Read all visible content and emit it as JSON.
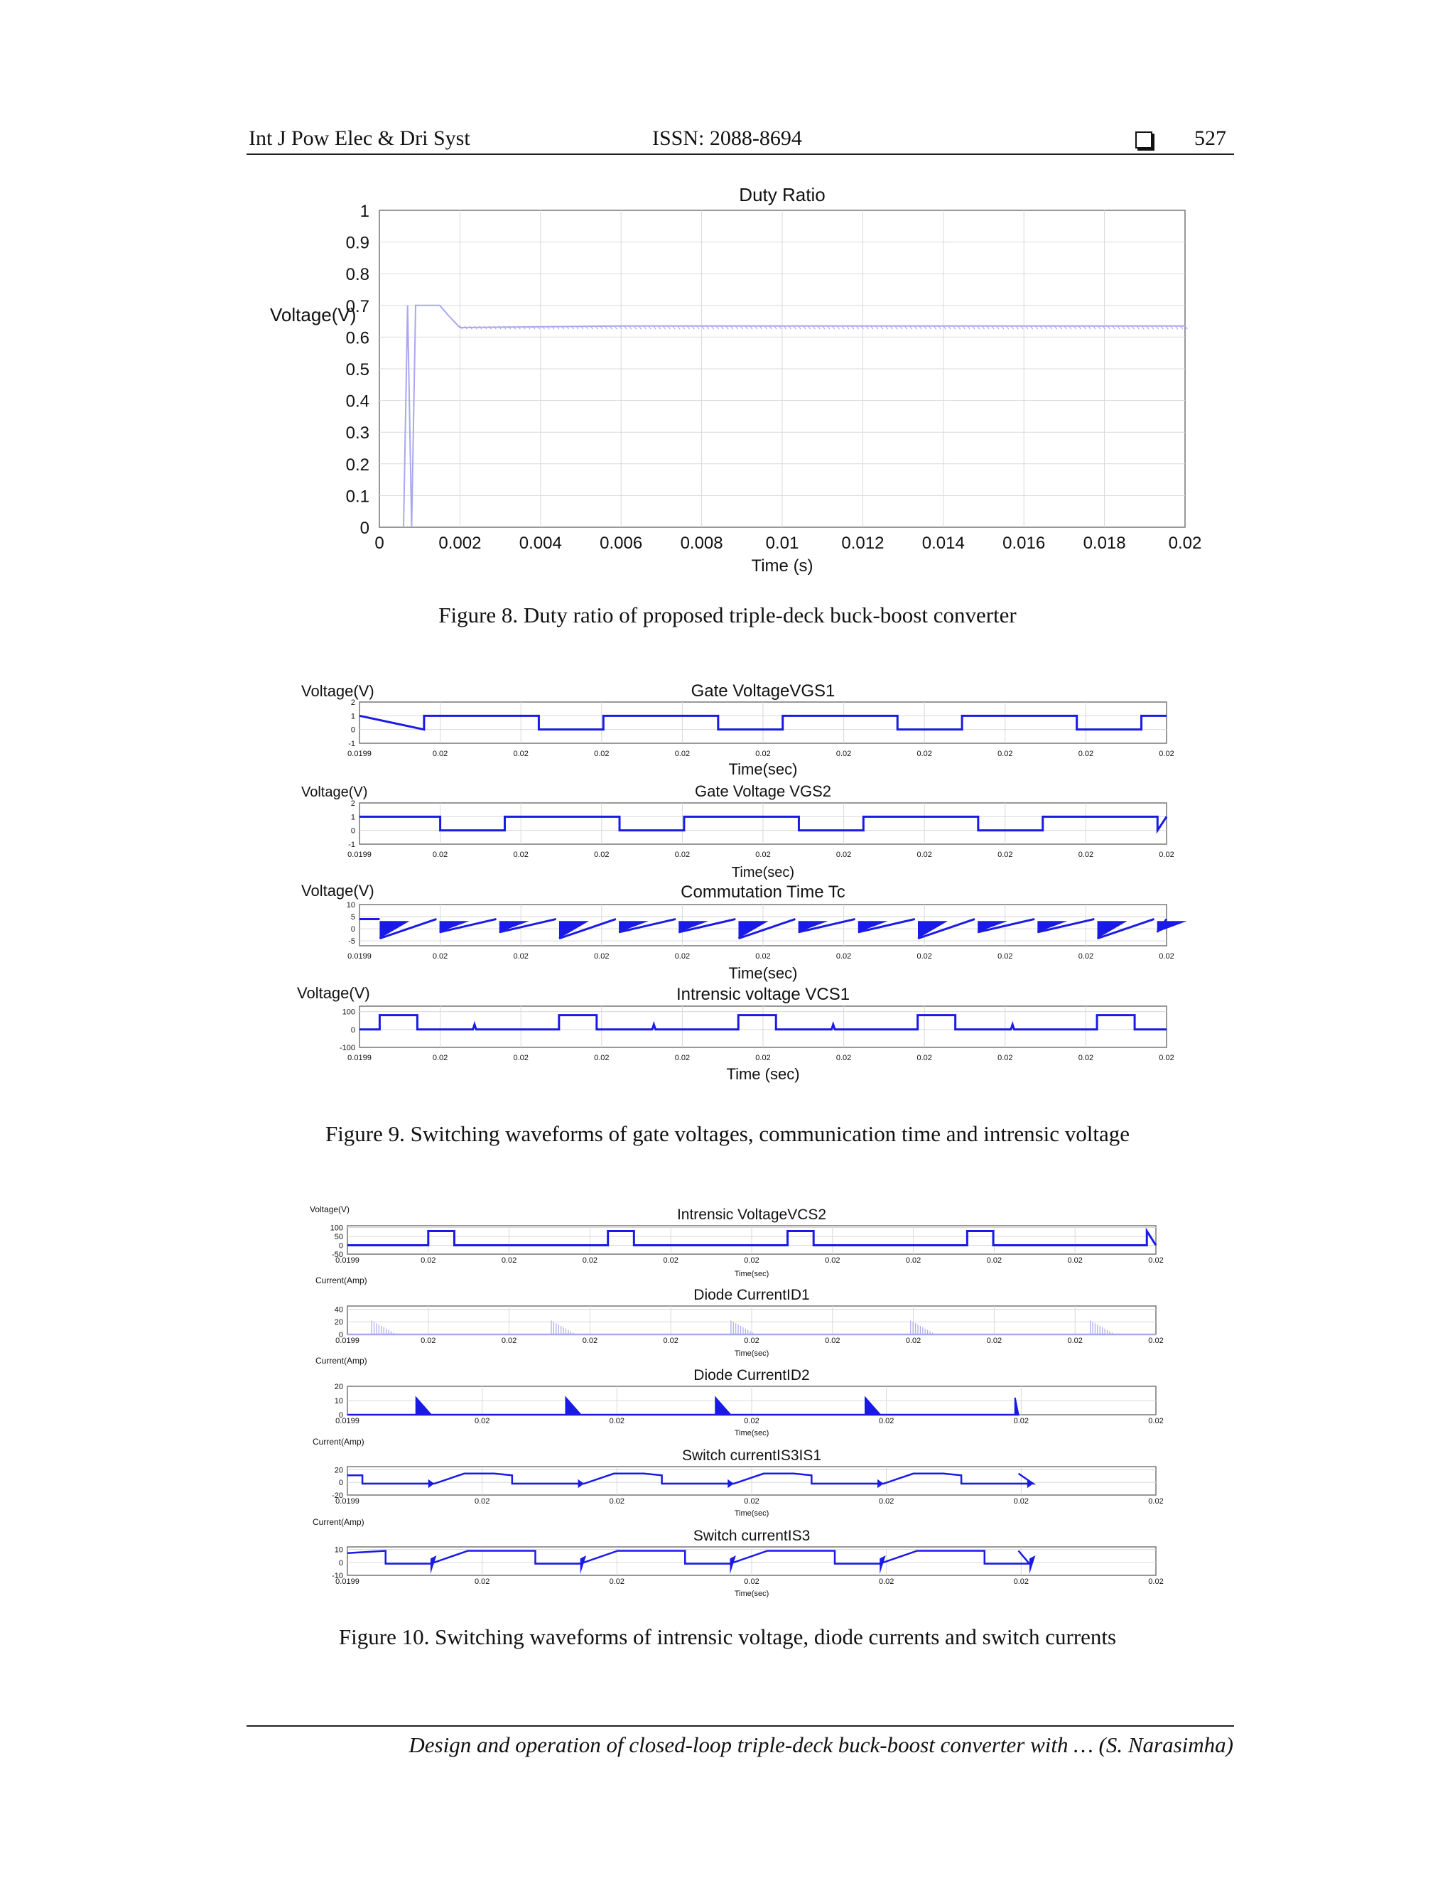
{
  "header": {
    "journal": "Int J Pow Elec & Dri Syst",
    "issn": "ISSN: 2088-8694",
    "page_number": "527",
    "icon": "checkbox-square-icon"
  },
  "footer": {
    "text": "Design and operation of closed-loop triple-deck buck-boost converter with … (S. Narasimha)"
  },
  "figures": {
    "fig8": {
      "caption": "Figure 8. Duty ratio of proposed triple-deck buck-boost converter"
    },
    "fig9": {
      "caption": "Figure 9. Switching waveforms of gate voltages, communication time and intrensic voltage"
    },
    "fig10": {
      "caption": "Figure 10. Switching waveforms of intrensic voltage, diode currents and switch currents"
    }
  },
  "colors": {
    "trace": "#1a1ae6",
    "trace_light": "#a8a8f0",
    "grid": "#d9d9d9"
  },
  "chart_data": [
    {
      "id": "fig8",
      "type": "line",
      "title": "Duty Ratio",
      "xlabel": "Time (s)",
      "ylabel": "Voltage(V)",
      "xlim": [
        0,
        0.02
      ],
      "ylim": [
        0,
        1
      ],
      "xticks": [
        "0",
        "0.002",
        "0.004",
        "0.006",
        "0.008",
        "0.01",
        "0.012",
        "0.014",
        "0.016",
        "0.018",
        "0.02"
      ],
      "yticks": [
        "0",
        "0.1",
        "0.2",
        "0.3",
        "0.4",
        "0.5",
        "0.6",
        "0.7",
        "0.8",
        "0.9",
        "1"
      ],
      "grid": true,
      "series": [
        {
          "x": [
            0.0006,
            0.0007,
            0.0008,
            0.0009,
            0.0015,
            0.0017,
            0.002,
            0.006,
            0.01,
            0.014,
            0.02
          ],
          "y": [
            0.0,
            0.7,
            0.0,
            0.7,
            0.7,
            0.67,
            0.63,
            0.635,
            0.635,
            0.635,
            0.635
          ]
        }
      ]
    },
    {
      "id": "fig9a",
      "type": "line",
      "title": "Gate VoltageVGS1",
      "ylabel": "Voltage(V)",
      "xlabel": "Time(sec)",
      "ylim": [
        -1,
        2
      ],
      "yticks": [
        "2",
        "1",
        "0",
        "-1"
      ],
      "xticks": [
        "0.0199",
        "0.02",
        "0.02",
        "0.02",
        "0.02",
        "0.02",
        "0.02",
        "0.02",
        "0.02",
        "0.02",
        "0.02"
      ],
      "pattern": "square",
      "high": 1,
      "low": 0,
      "period": 0.2222,
      "duty": 0.64,
      "phase": 0.0
    },
    {
      "id": "fig9b",
      "type": "line",
      "title": "Gate Voltage VGS2",
      "ylabel": "Voltage(V)",
      "xlabel": "Time(sec)",
      "ylim": [
        -1,
        2
      ],
      "yticks": [
        "2",
        "1",
        "0",
        "-1"
      ],
      "xticks": [
        "0.0199",
        "0.02",
        "0.02",
        "0.02",
        "0.02",
        "0.02",
        "0.02",
        "0.02",
        "0.02",
        "0.02",
        "0.02"
      ],
      "pattern": "square",
      "high": 1,
      "low": 0,
      "period": 0.2222,
      "duty": 0.64,
      "phase": 0.1
    },
    {
      "id": "fig9c",
      "type": "line",
      "title": "Commutation Time Tc",
      "ylabel": "Voltage(V)",
      "xlabel": "Time(sec)",
      "ylim": [
        -7,
        10
      ],
      "yticks": [
        "10",
        "5",
        "0",
        "-5"
      ],
      "xticks": [
        "0.0199",
        "0.02",
        "0.02",
        "0.02",
        "0.02",
        "0.02",
        "0.02",
        "0.02",
        "0.02",
        "0.02",
        "0.02"
      ],
      "pattern": "ramp",
      "high": 4,
      "low": -4,
      "period": 0.0741,
      "phase": 0.025
    },
    {
      "id": "fig9d",
      "type": "line",
      "title": "Intrensic voltage VCS1",
      "ylabel": "Voltage(V)",
      "xlabel": "Time (sec)",
      "ylim": [
        -100,
        130
      ],
      "yticks": [
        "100",
        "0",
        "-100"
      ],
      "xticks": [
        "0.0199",
        "0.02",
        "0.02",
        "0.02",
        "0.02",
        "0.02",
        "0.02",
        "0.02",
        "0.02",
        "0.02",
        "0.02"
      ],
      "pattern": "pulse",
      "high": 80,
      "low": 0,
      "period": 0.2222,
      "duty": 0.21,
      "phase": 0.025
    },
    {
      "id": "fig10a",
      "type": "line",
      "title": "Intrensic VoltageVCS2",
      "ylabel": "Voltage(V)",
      "xlabel": "Time(sec)",
      "ylim": [
        -50,
        110
      ],
      "yticks": [
        "100",
        "50",
        "0",
        "-50"
      ],
      "xticks": [
        "0.0199",
        "0.02",
        "0.02",
        "0.02",
        "0.02",
        "0.02",
        "0.02",
        "0.02",
        "0.02",
        "0.02",
        "0.02"
      ],
      "pattern": "pulse",
      "high": 80,
      "low": 0,
      "period": 0.2222,
      "duty": 0.145,
      "phase": 0.1
    },
    {
      "id": "fig10b",
      "type": "line",
      "title": "Diode CurrentID1",
      "ylabel": "Current(Amp)",
      "xlabel": "Time(sec)",
      "ylim": [
        0,
        45
      ],
      "yticks": [
        "40",
        "20",
        "0"
      ],
      "xticks": [
        "0.0199",
        "0.02",
        "0.02",
        "0.02",
        "0.02",
        "0.02",
        "0.02",
        "0.02",
        "0.02",
        "0.02",
        "0.02"
      ],
      "pattern": "decay",
      "high": 22,
      "low": 0,
      "period": 0.2222,
      "duty": 0.14,
      "phase": 0.03
    },
    {
      "id": "fig10c",
      "type": "line",
      "title": "Diode CurrentID2",
      "ylabel": "Current(Amp)",
      "xlabel": "Time(sec)",
      "ylim": [
        0,
        20
      ],
      "yticks": [
        "20",
        "10",
        "0"
      ],
      "xticks": [
        "0.0199",
        "0.02",
        "0.02",
        "0.02",
        "0.02",
        "0.02",
        "0.02"
      ],
      "pattern": "decay",
      "high": 12,
      "low": 0,
      "period": 0.1852,
      "duty": 0.1,
      "phase": 0.085,
      "end": 0.83
    },
    {
      "id": "fig10d",
      "type": "line",
      "title": "Switch currentIS3IS1",
      "ylabel": "Current(Amp)",
      "xlabel": "Time(sec)",
      "ylim": [
        -20,
        25
      ],
      "yticks": [
        "20",
        "0",
        "-20"
      ],
      "xticks": [
        "0.0199",
        "0.02",
        "0.02",
        "0.02",
        "0.02",
        "0.02",
        "0.02"
      ],
      "pattern": "sw1",
      "high": 14,
      "low": -2,
      "period": 0.1852,
      "phase": 0.0,
      "end": 0.83
    },
    {
      "id": "fig10e",
      "type": "line",
      "title": "Switch currentIS3",
      "ylabel": "Current(Amp)",
      "xlabel": "Time(sec)",
      "ylim": [
        -10,
        12
      ],
      "yticks": [
        "10",
        "0",
        "-10"
      ],
      "xticks": [
        "0.0199",
        "0.02",
        "0.02",
        "0.02",
        "0.02",
        "0.02",
        "0.02"
      ],
      "pattern": "sw2",
      "high": 9,
      "low": -1,
      "period": 0.1852,
      "phase": 0.025,
      "end": 0.83
    }
  ]
}
